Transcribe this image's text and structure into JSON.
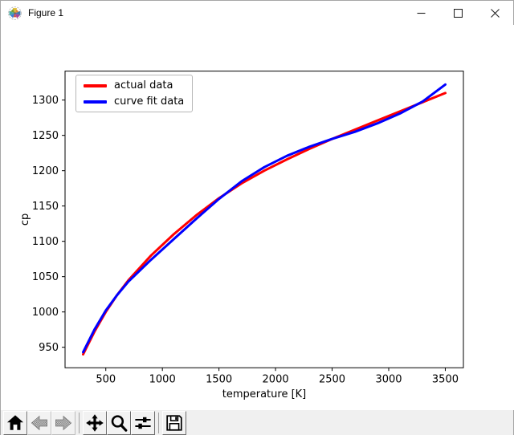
{
  "window": {
    "title": "Figure 1",
    "icon": "matplotlib-logo-icon",
    "controls": [
      {
        "name": "minimize",
        "icon": "minimize-icon"
      },
      {
        "name": "maximize",
        "icon": "maximize-icon"
      },
      {
        "name": "close",
        "icon": "close-icon"
      }
    ]
  },
  "toolbar": {
    "buttons": [
      {
        "name": "home",
        "icon": "home-icon",
        "enabled": true
      },
      {
        "name": "back",
        "icon": "back-arrow-icon",
        "enabled": false
      },
      {
        "name": "forward",
        "icon": "forward-arrow-icon",
        "enabled": false
      },
      {
        "name": "pan",
        "icon": "pan-arrows-icon",
        "enabled": true
      },
      {
        "name": "zoom",
        "icon": "zoom-magnifier-icon",
        "enabled": true
      },
      {
        "name": "configure-subplots",
        "icon": "sliders-icon",
        "enabled": true
      },
      {
        "name": "save",
        "icon": "save-floppy-icon",
        "enabled": true
      }
    ],
    "status_text": ""
  },
  "chart_data": {
    "type": "line",
    "title": "",
    "xlabel": "temperature [K]",
    "ylabel": "cp",
    "xlim": [
      140,
      3660
    ],
    "ylim": [
      921,
      1341
    ],
    "xticks": [
      500,
      1000,
      1500,
      2000,
      2500,
      3000,
      3500
    ],
    "yticks": [
      950,
      1000,
      1050,
      1100,
      1150,
      1200,
      1250,
      1300
    ],
    "grid": false,
    "legend": {
      "position": "upper left"
    },
    "x": [
      300,
      400,
      500,
      600,
      700,
      900,
      1100,
      1300,
      1500,
      1700,
      1900,
      2100,
      2300,
      2500,
      2700,
      2900,
      3100,
      3300,
      3500
    ],
    "series": [
      {
        "name": "actual data",
        "color": "#ff0000",
        "linewidth": 3,
        "values": [
          940,
          972,
          1000,
          1024,
          1045,
          1080,
          1110,
          1137,
          1161,
          1182,
          1200,
          1216,
          1231,
          1245,
          1258,
          1271,
          1284,
          1297,
          1310
        ]
      },
      {
        "name": "curve fit data",
        "color": "#0000ff",
        "linewidth": 3,
        "values": [
          943,
          975,
          1002,
          1024,
          1043,
          1074,
          1103,
          1132,
          1160,
          1185,
          1205,
          1221,
          1234,
          1245,
          1255,
          1267,
          1281,
          1298,
          1322
        ]
      }
    ]
  }
}
